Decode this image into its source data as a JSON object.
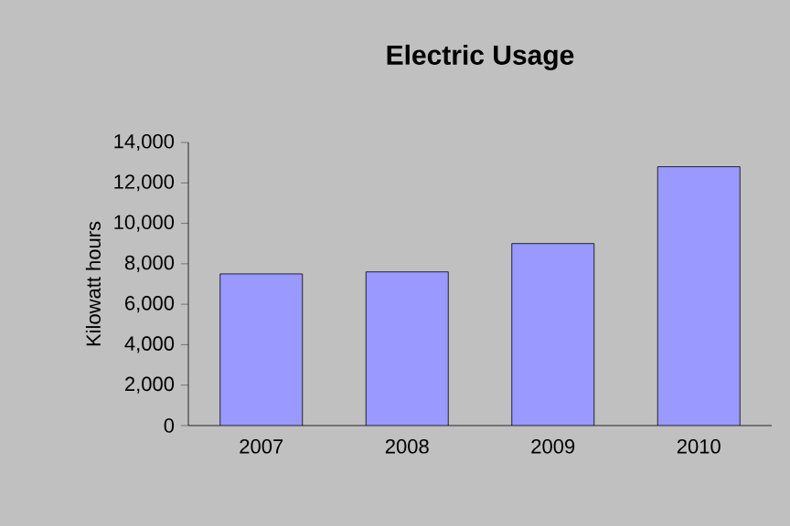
{
  "chart_data": {
    "type": "bar",
    "title": "Electric Usage",
    "ylabel": "Kilowatt hours",
    "categories": [
      "2007",
      "2008",
      "2009",
      "2010"
    ],
    "values": [
      7500,
      7600,
      9000,
      12800
    ],
    "color": "#9999ff",
    "ylim": [
      0,
      14000
    ],
    "yticks": [
      {
        "value": 0,
        "label": "0"
      },
      {
        "value": 2000,
        "label": "2,000"
      },
      {
        "value": 4000,
        "label": "4,000"
      },
      {
        "value": 6000,
        "label": "6,000"
      },
      {
        "value": 8000,
        "label": "8,000"
      },
      {
        "value": 10000,
        "label": "10,000"
      },
      {
        "value": 12000,
        "label": "12,000"
      },
      {
        "value": 14000,
        "label": "14,000"
      }
    ],
    "data_labels": false
  }
}
